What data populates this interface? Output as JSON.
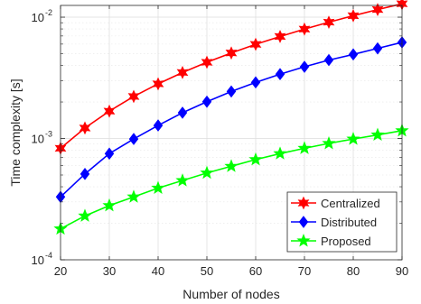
{
  "chart_data": {
    "type": "line",
    "xlabel": "Number of nodes",
    "ylabel": "Time complexity [s]",
    "x": [
      20,
      25,
      30,
      35,
      40,
      45,
      50,
      55,
      60,
      65,
      70,
      75,
      80,
      85,
      90
    ],
    "xlim": [
      20,
      90
    ],
    "ylim": [
      0.0001,
      0.0125
    ],
    "yscale": "log",
    "grid": true,
    "legend_position": "bottom-right",
    "x_ticks": [
      "20",
      "30",
      "40",
      "50",
      "60",
      "70",
      "80",
      "90"
    ],
    "y_ticks": [
      {
        "value": 0.0001,
        "base": "10",
        "exp": "-4"
      },
      {
        "value": 0.001,
        "base": "10",
        "exp": "-3"
      },
      {
        "value": 0.01,
        "base": "10",
        "exp": "-2"
      }
    ],
    "series": [
      {
        "name": "Centralized",
        "color": "#ff0000",
        "marker": "hexagram",
        "values": [
          0.00083,
          0.00122,
          0.00168,
          0.00222,
          0.00282,
          0.0035,
          0.00425,
          0.00507,
          0.00597,
          0.00693,
          0.00797,
          0.00909,
          0.01028,
          0.01155,
          0.0129
        ]
      },
      {
        "name": "Distributed",
        "color": "#0000ff",
        "marker": "diamond",
        "values": [
          0.00033,
          0.00051,
          0.00075,
          0.00099,
          0.00128,
          0.00163,
          0.00201,
          0.00244,
          0.0029,
          0.00339,
          0.0039,
          0.00443,
          0.00493,
          0.00553,
          0.0062
        ]
      },
      {
        "name": "Proposed",
        "color": "#00ff00",
        "marker": "pentagram",
        "values": [
          0.00018,
          0.00023,
          0.00028,
          0.00033,
          0.00039,
          0.00045,
          0.00052,
          0.00059,
          0.00067,
          0.00075,
          0.00083,
          0.00091,
          0.00099,
          0.00107,
          0.00116
        ]
      }
    ]
  }
}
